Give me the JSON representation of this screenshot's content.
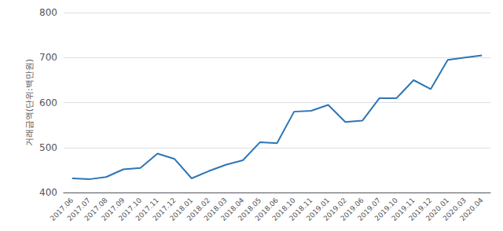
{
  "chart_data": {
    "type": "line",
    "categories": [
      "2017.06",
      "2017.07",
      "2017.08",
      "2017.09",
      "2017.10",
      "2017.11",
      "2017.12",
      "2018.01",
      "2018.02",
      "2018.03",
      "2018.04",
      "2018.05",
      "2018.06",
      "2018.10",
      "2018.11",
      "2019.01",
      "2019.02",
      "2019.06",
      "2019.07",
      "2019.10",
      "2019.11",
      "2019.12",
      "2020.01",
      "2020.03",
      "2020.04"
    ],
    "values": [
      432,
      430,
      435,
      452,
      455,
      487,
      475,
      432,
      448,
      462,
      472,
      512,
      510,
      580,
      582,
      595,
      557,
      560,
      610,
      610,
      650,
      630,
      695,
      700,
      705
    ],
    "color": "#2e75b6",
    "ylabel": "거래금액(단위:백만원)",
    "ylim": [
      400,
      800
    ],
    "yticks": [
      400,
      500,
      600,
      700,
      800
    ],
    "grid": true
  }
}
